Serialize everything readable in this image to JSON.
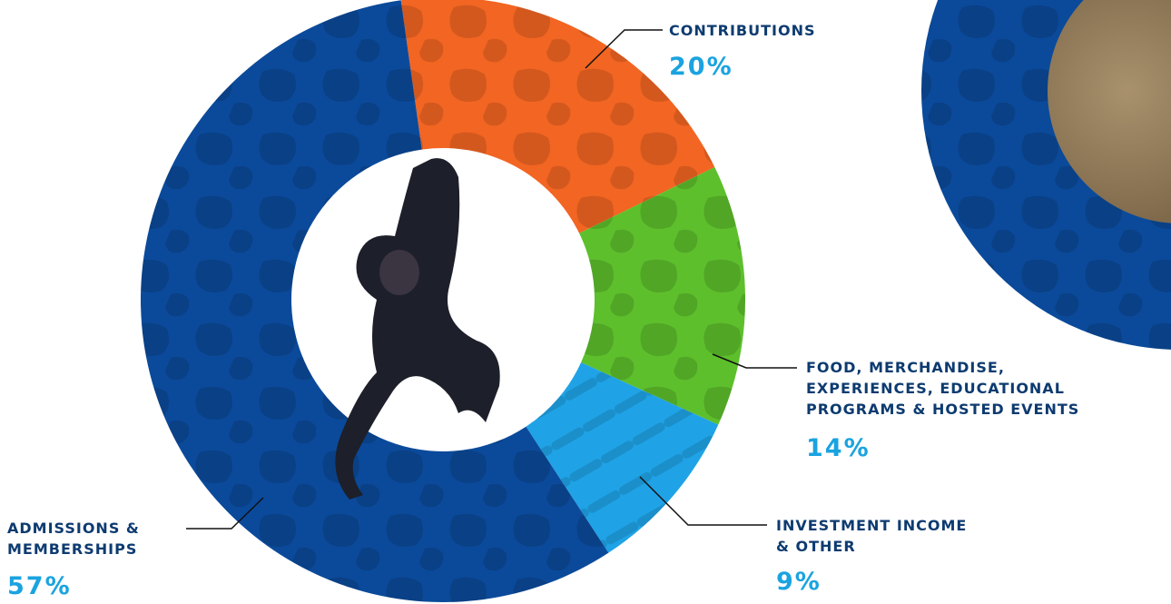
{
  "chart_data": {
    "type": "donut",
    "categories": [
      "CONTRIBUTIONS",
      "FOOD, MERCHANDISE,\nEXPERIENCES, EDUCATIONAL\nPROGRAMS & HOSTED EVENTS",
      "INVESTMENT INCOME\n& OTHER",
      "ADMISSIONS &\nMEMBERSHIPS"
    ],
    "values": [
      20,
      14,
      9,
      57
    ],
    "value_labels": [
      "20%",
      "14%",
      "9%",
      "57%"
    ],
    "colors": [
      "#f26522",
      "#5dbf2c",
      "#1fa3e6",
      "#0b4a9a"
    ]
  }
}
